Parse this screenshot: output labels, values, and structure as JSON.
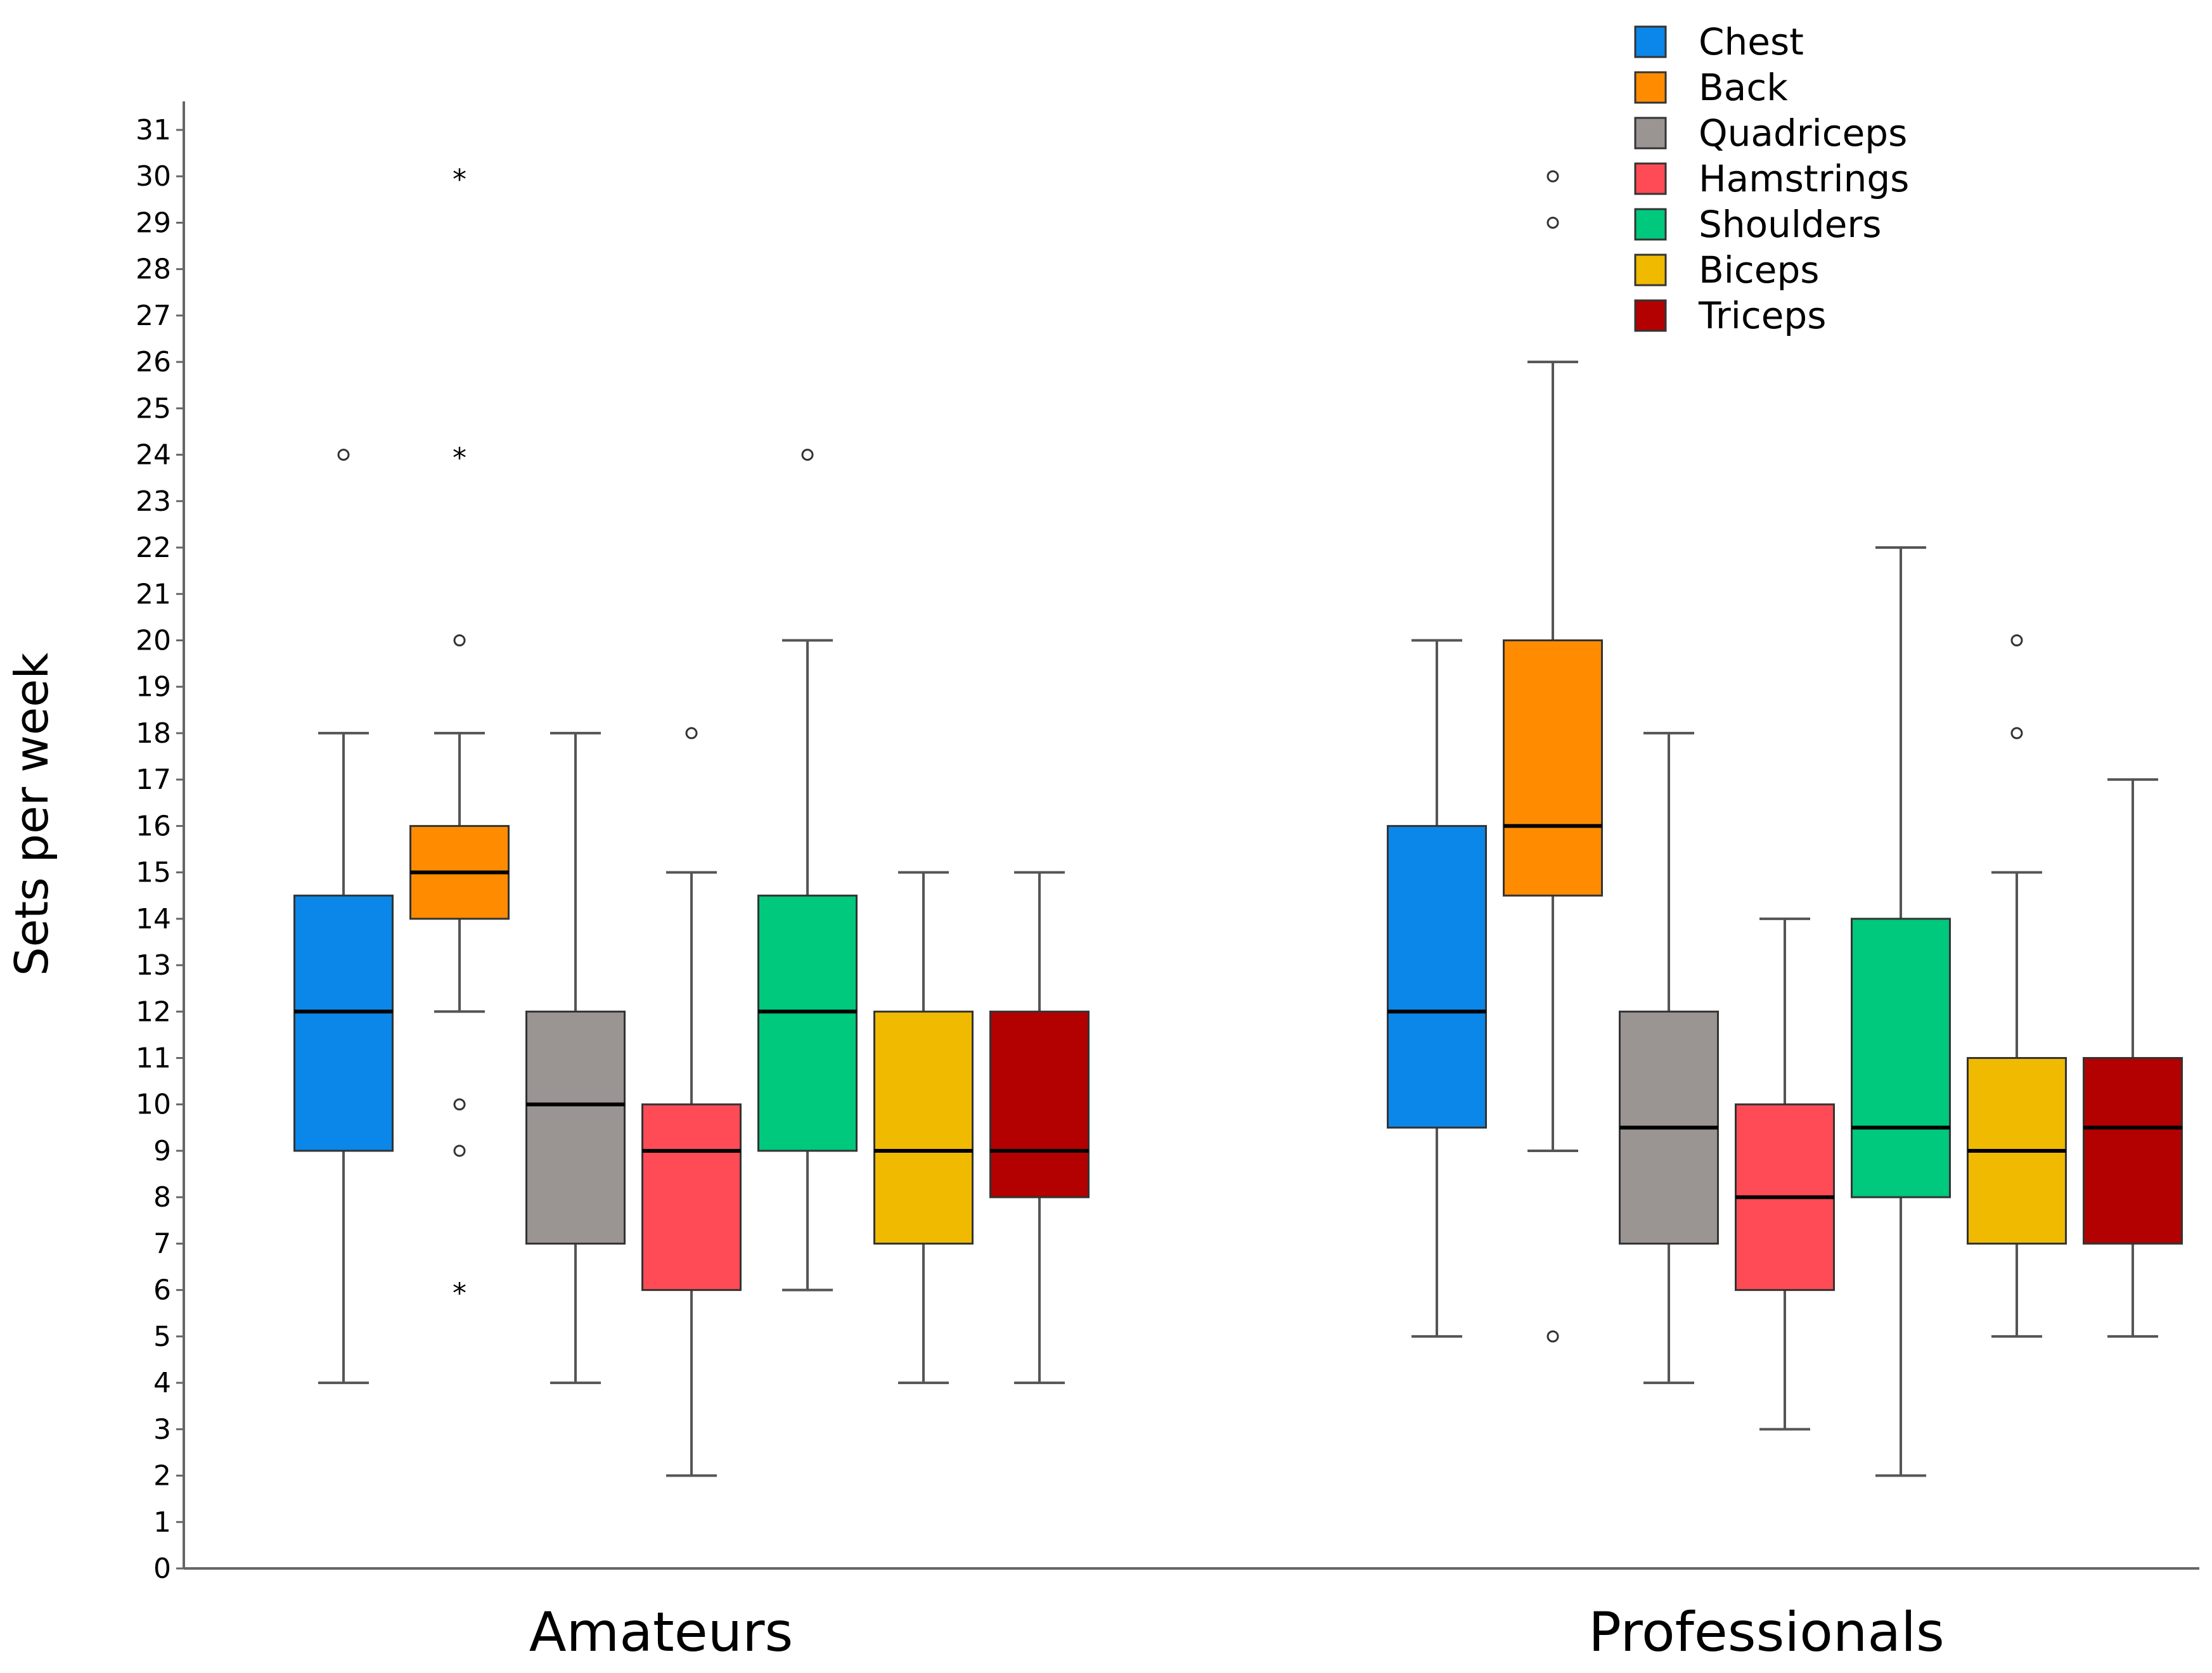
{
  "chart_data": {
    "type": "boxplot",
    "title": "",
    "xlabel": "",
    "ylabel": "Sets per week",
    "ylim": [
      0,
      31
    ],
    "yticks": [
      0,
      1,
      2,
      3,
      4,
      5,
      6,
      7,
      8,
      9,
      10,
      11,
      12,
      13,
      14,
      15,
      16,
      17,
      18,
      19,
      20,
      21,
      22,
      23,
      24,
      25,
      26,
      27,
      28,
      29,
      30,
      31
    ],
    "grid": false,
    "legend_position": "top-right",
    "categories": [
      "Amateurs",
      "Professionals"
    ],
    "series": [
      {
        "name": "Chest",
        "color": "#0a87e8",
        "boxes": [
          {
            "whisker_low": 4,
            "q1": 9,
            "median": 12,
            "q3": 14.5,
            "whisker_high": 18,
            "outliers": [
              {
                "value": 24,
                "marker": "circle"
              }
            ]
          },
          {
            "whisker_low": 5,
            "q1": 9.5,
            "median": 12,
            "q3": 16,
            "whisker_high": 20,
            "outliers": []
          }
        ]
      },
      {
        "name": "Back",
        "color": "#ff8c00",
        "boxes": [
          {
            "whisker_low": 12,
            "q1": 14,
            "median": 15,
            "q3": 16,
            "whisker_high": 18,
            "outliers": [
              {
                "value": 30,
                "marker": "star"
              },
              {
                "value": 24,
                "marker": "star"
              },
              {
                "value": 20,
                "marker": "circle"
              },
              {
                "value": 10,
                "marker": "circle"
              },
              {
                "value": 9,
                "marker": "circle"
              },
              {
                "value": 6,
                "marker": "star"
              }
            ]
          },
          {
            "whisker_low": 9,
            "q1": 14.5,
            "median": 16,
            "q3": 20,
            "whisker_high": 26,
            "outliers": [
              {
                "value": 30,
                "marker": "circle"
              },
              {
                "value": 29,
                "marker": "circle"
              },
              {
                "value": 5,
                "marker": "circle"
              }
            ]
          }
        ]
      },
      {
        "name": "Quadriceps",
        "color": "#9a9593",
        "boxes": [
          {
            "whisker_low": 4,
            "q1": 7,
            "median": 10,
            "q3": 12,
            "whisker_high": 18,
            "outliers": []
          },
          {
            "whisker_low": 4,
            "q1": 7,
            "median": 9.5,
            "q3": 12,
            "whisker_high": 18,
            "outliers": []
          }
        ]
      },
      {
        "name": "Hamstrings",
        "color": "#ff4b55",
        "boxes": [
          {
            "whisker_low": 2,
            "q1": 6,
            "median": 9,
            "q3": 10,
            "whisker_high": 15,
            "outliers": [
              {
                "value": 18,
                "marker": "circle"
              }
            ]
          },
          {
            "whisker_low": 3,
            "q1": 6,
            "median": 8,
            "q3": 10,
            "whisker_high": 14,
            "outliers": []
          }
        ]
      },
      {
        "name": "Shoulders",
        "color": "#00c87d",
        "boxes": [
          {
            "whisker_low": 6,
            "q1": 9,
            "median": 12,
            "q3": 14.5,
            "whisker_high": 20,
            "outliers": [
              {
                "value": 24,
                "marker": "circle"
              }
            ]
          },
          {
            "whisker_low": 2,
            "q1": 8,
            "median": 9.5,
            "q3": 14,
            "whisker_high": 22,
            "outliers": []
          }
        ]
      },
      {
        "name": "Biceps",
        "color": "#f0ba00",
        "boxes": [
          {
            "whisker_low": 4,
            "q1": 7,
            "median": 9,
            "q3": 12,
            "whisker_high": 15,
            "outliers": []
          },
          {
            "whisker_low": 5,
            "q1": 7,
            "median": 9,
            "q3": 11,
            "whisker_high": 15,
            "outliers": [
              {
                "value": 20,
                "marker": "circle"
              },
              {
                "value": 18,
                "marker": "circle"
              }
            ]
          }
        ]
      },
      {
        "name": "Triceps",
        "color": "#b30000",
        "boxes": [
          {
            "whisker_low": 4,
            "q1": 8,
            "median": 9,
            "q3": 12,
            "whisker_high": 15,
            "outliers": []
          },
          {
            "whisker_low": 5,
            "q1": 7,
            "median": 9.5,
            "q3": 11,
            "whisker_high": 17,
            "outliers": []
          }
        ]
      }
    ]
  }
}
